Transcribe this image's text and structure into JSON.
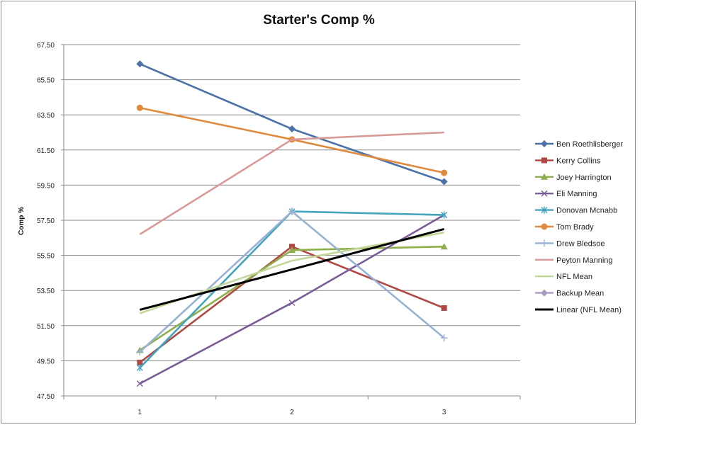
{
  "chart_data": {
    "type": "line",
    "title": "Starter's Comp %",
    "xlabel": "",
    "ylabel": "Comp %",
    "categories": [
      "1",
      "2",
      "3"
    ],
    "ylim": [
      47.5,
      67.5
    ],
    "yticks": [
      "47.50",
      "49.50",
      "51.50",
      "53.50",
      "55.50",
      "57.50",
      "59.50",
      "61.50",
      "63.50",
      "65.50",
      "67.50"
    ],
    "grid": true,
    "legend_position": "right",
    "series": [
      {
        "name": "Ben Roethlisberger",
        "values": [
          66.4,
          62.7,
          59.7
        ],
        "color": "#4a72a6",
        "marker": "diamond"
      },
      {
        "name": "Kerry Collins",
        "values": [
          49.4,
          56.0,
          52.5
        ],
        "color": "#b04844",
        "marker": "square"
      },
      {
        "name": "Joey Harrington",
        "values": [
          50.1,
          55.8,
          56.0
        ],
        "color": "#8db04a",
        "marker": "triangle"
      },
      {
        "name": "Eli Manning",
        "values": [
          48.2,
          52.8,
          57.8
        ],
        "color": "#7a5c98",
        "marker": "x"
      },
      {
        "name": "Donovan Mcnabb",
        "values": [
          49.1,
          58.0,
          57.8
        ],
        "color": "#44a3bd",
        "marker": "asterisk"
      },
      {
        "name": "Tom Brady",
        "values": [
          63.9,
          62.1,
          60.2
        ],
        "color": "#e08a3e",
        "marker": "circle"
      },
      {
        "name": "Drew Bledsoe",
        "values": [
          50.0,
          58.0,
          50.8
        ],
        "color": "#98b2d4",
        "marker": "plus"
      },
      {
        "name": "Peyton Manning",
        "values": [
          56.7,
          62.1,
          62.5
        ],
        "color": "#d89a98",
        "marker": "none"
      },
      {
        "name": "NFL Mean",
        "values": [
          52.2,
          55.2,
          56.8
        ],
        "color": "#c4d79a",
        "marker": "none"
      },
      {
        "name": "Backup Mean",
        "values": [
          null,
          null,
          null
        ],
        "color": "#a99ac4",
        "marker": "diamond"
      },
      {
        "name": "Linear (NFL Mean)",
        "values": [
          52.4,
          54.7,
          57.0
        ],
        "color": "#000000",
        "marker": "none"
      }
    ]
  }
}
